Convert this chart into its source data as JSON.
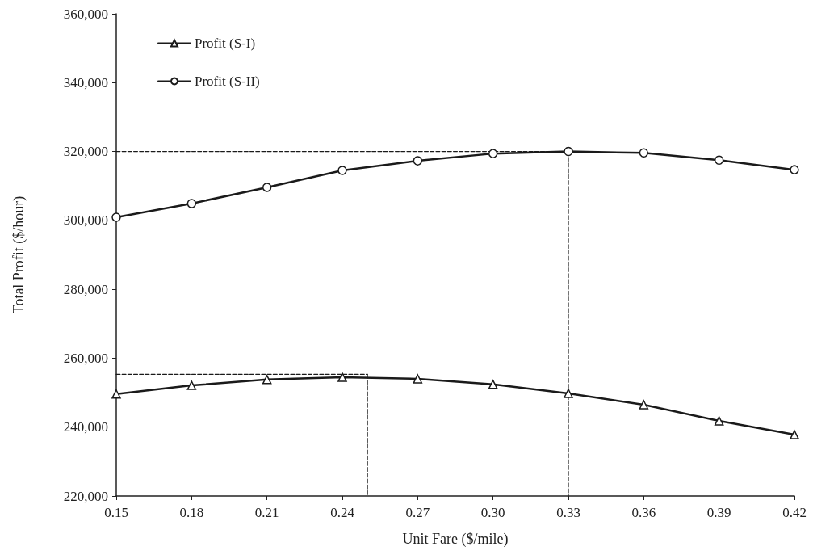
{
  "chart_data": {
    "type": "line",
    "xlabel": "Unit Fare ($/mile)",
    "ylabel": "Total Profit ($/hour)",
    "x": [
      0.15,
      0.18,
      0.21,
      0.24,
      0.27,
      0.3,
      0.33,
      0.36,
      0.39,
      0.42
    ],
    "series": [
      {
        "name": "Profit (S-I)",
        "color": "#1a1a1a",
        "marker": "triangle",
        "values": [
          249600,
          252100,
          253800,
          254500,
          254000,
          252400,
          249800,
          246500,
          241800,
          237800
        ]
      },
      {
        "name": "Profit (S-II)",
        "color": "#1a1a1a",
        "marker": "circle",
        "values": [
          300900,
          304900,
          309600,
          314500,
          317300,
          319400,
          320000,
          319600,
          317500,
          314700
        ]
      },
      {
        "type": "line",
        "color": "#1a1a1a",
        "marker": "none",
        "line_style": "dashed",
        "x": [
          0.15,
          0.33
        ],
        "values": [
          320000,
          320000
        ]
      },
      {
        "type": "line",
        "color": "#1a1a1a",
        "marker": "none",
        "line_style": "dashed",
        "x": [
          0.33,
          0.33
        ],
        "values": [
          320000,
          220000
        ]
      },
      {
        "type": "line",
        "color": "#1a1a1a",
        "marker": "none",
        "line_style": "dashed",
        "x": [
          0.15,
          0.25
        ],
        "values": [
          255300,
          255300
        ]
      },
      {
        "type": "line",
        "color": "#1a1a1a",
        "marker": "none",
        "line_style": "dashed",
        "x": [
          0.25,
          0.25
        ],
        "values": [
          255300,
          220000
        ]
      }
    ],
    "xlim": [
      0.15,
      0.42
    ],
    "xticks": [
      {
        "value": 0.15,
        "label": "0.15"
      },
      {
        "value": 0.18,
        "label": "0.18"
      },
      {
        "value": 0.21,
        "label": "0.21"
      },
      {
        "value": 0.24,
        "label": "0.24"
      },
      {
        "value": 0.27,
        "label": "0.27"
      },
      {
        "value": 0.3,
        "label": "0.30"
      },
      {
        "value": 0.33,
        "label": "0.33"
      },
      {
        "value": 0.36,
        "label": "0.36"
      },
      {
        "value": 0.39,
        "label": "0.39"
      },
      {
        "value": 0.42,
        "label": "0.42"
      }
    ],
    "ylim": [
      220000,
      360000
    ],
    "yticks": [
      {
        "value": 220000,
        "label": "220,000"
      },
      {
        "value": 240000,
        "label": "240,000"
      },
      {
        "value": 260000,
        "label": "260,000"
      },
      {
        "value": 280000,
        "label": "280,000"
      },
      {
        "value": 300000,
        "label": "300,000"
      },
      {
        "value": 320000,
        "label": "320,000"
      },
      {
        "value": 340000,
        "label": "340,000"
      },
      {
        "value": 360000,
        "label": "360,000"
      }
    ],
    "grid": false,
    "legend": "top left",
    "line_style": "solid"
  }
}
